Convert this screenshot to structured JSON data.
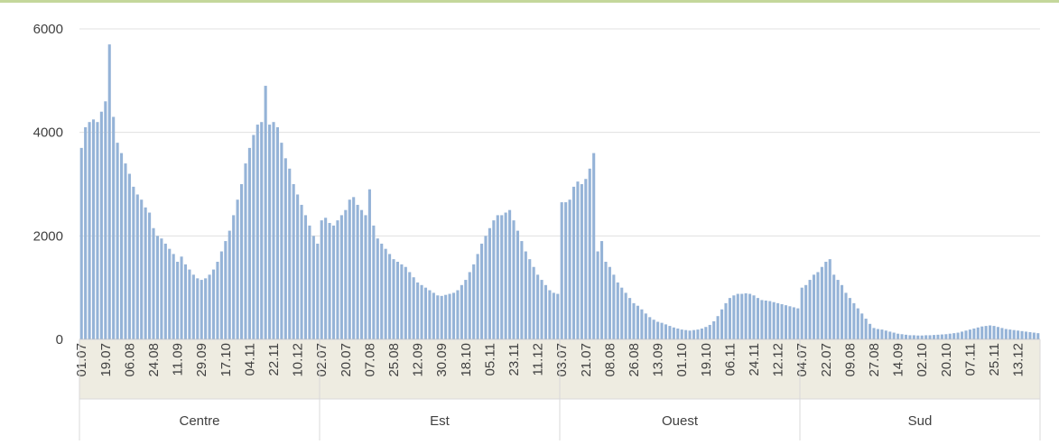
{
  "chart_data": {
    "type": "bar",
    "color": "#95b3d7",
    "grid": true,
    "ylim": [
      0,
      6000
    ],
    "yticks": [
      0,
      2000,
      4000,
      6000
    ],
    "groups": [
      "Centre",
      "Est",
      "Ouest",
      "Sud"
    ],
    "categories": [
      "01.07",
      null,
      null,
      null,
      null,
      null,
      "19.07",
      null,
      null,
      null,
      null,
      null,
      "06.08",
      null,
      null,
      null,
      null,
      null,
      "24.08",
      null,
      null,
      null,
      null,
      null,
      "11.09",
      null,
      null,
      null,
      null,
      null,
      "29.09",
      null,
      null,
      null,
      null,
      null,
      "17.10",
      null,
      null,
      null,
      null,
      null,
      "04.11",
      null,
      null,
      null,
      null,
      null,
      "22.11",
      null,
      null,
      null,
      null,
      null,
      "10.12",
      null,
      null,
      null,
      null,
      null,
      "02.07",
      null,
      null,
      null,
      null,
      null,
      "20.07",
      null,
      null,
      null,
      null,
      null,
      "07.08",
      null,
      null,
      null,
      null,
      null,
      "25.08",
      null,
      null,
      null,
      null,
      null,
      "12.09",
      null,
      null,
      null,
      null,
      null,
      "30.09",
      null,
      null,
      null,
      null,
      null,
      "18.10",
      null,
      null,
      null,
      null,
      null,
      "05.11",
      null,
      null,
      null,
      null,
      null,
      "23.11",
      null,
      null,
      null,
      null,
      null,
      "11.12",
      null,
      null,
      null,
      null,
      null,
      "03.07",
      null,
      null,
      null,
      null,
      null,
      "21.07",
      null,
      null,
      null,
      null,
      null,
      "08.08",
      null,
      null,
      null,
      null,
      null,
      "26.08",
      null,
      null,
      null,
      null,
      null,
      "13.09",
      null,
      null,
      null,
      null,
      null,
      "01.10",
      null,
      null,
      null,
      null,
      null,
      "19.10",
      null,
      null,
      null,
      null,
      null,
      "06.11",
      null,
      null,
      null,
      null,
      null,
      "24.11",
      null,
      null,
      null,
      null,
      null,
      "12.12",
      null,
      null,
      null,
      null,
      null,
      "04.07",
      null,
      null,
      null,
      null,
      null,
      "22.07",
      null,
      null,
      null,
      null,
      null,
      "09.08",
      null,
      null,
      null,
      null,
      null,
      "27.08",
      null,
      null,
      null,
      null,
      null,
      "14.09",
      null,
      null,
      null,
      null,
      null,
      "02.10",
      null,
      null,
      null,
      null,
      null,
      "20.10",
      null,
      null,
      null,
      null,
      null,
      "07.11",
      null,
      null,
      null,
      null,
      null,
      "25.11",
      null,
      null,
      null,
      null,
      null,
      "13.12",
      null,
      null,
      null,
      null,
      null
    ],
    "values": [
      3700,
      4100,
      4200,
      4250,
      4200,
      4400,
      4600,
      5700,
      4300,
      3800,
      3600,
      3400,
      3200,
      2950,
      2800,
      2700,
      2550,
      2450,
      2150,
      2000,
      1950,
      1850,
      1750,
      1650,
      1500,
      1600,
      1450,
      1350,
      1250,
      1180,
      1150,
      1180,
      1250,
      1350,
      1500,
      1700,
      1900,
      2100,
      2400,
      2700,
      3000,
      3400,
      3700,
      3950,
      4150,
      4200,
      4900,
      4150,
      4200,
      4100,
      3800,
      3500,
      3300,
      3000,
      2800,
      2600,
      2400,
      2200,
      2000,
      1850,
      2300,
      2350,
      2250,
      2200,
      2300,
      2400,
      2500,
      2700,
      2750,
      2600,
      2500,
      2400,
      2900,
      2200,
      1950,
      1850,
      1750,
      1650,
      1550,
      1500,
      1450,
      1400,
      1300,
      1200,
      1100,
      1050,
      1000,
      950,
      900,
      850,
      840,
      860,
      880,
      900,
      950,
      1050,
      1150,
      1300,
      1450,
      1650,
      1850,
      2000,
      2150,
      2300,
      2400,
      2400,
      2450,
      2500,
      2300,
      2100,
      1900,
      1700,
      1550,
      1400,
      1250,
      1150,
      1050,
      950,
      900,
      880,
      2650,
      2650,
      2700,
      2950,
      3050,
      3000,
      3100,
      3300,
      3600,
      1700,
      1900,
      1500,
      1400,
      1250,
      1100,
      1000,
      900,
      800,
      700,
      650,
      580,
      500,
      430,
      380,
      340,
      320,
      290,
      260,
      230,
      210,
      190,
      180,
      170,
      180,
      190,
      210,
      240,
      280,
      350,
      450,
      580,
      700,
      800,
      850,
      880,
      880,
      890,
      880,
      850,
      800,
      760,
      750,
      740,
      720,
      700,
      680,
      660,
      640,
      620,
      600,
      1000,
      1050,
      1150,
      1250,
      1300,
      1400,
      1500,
      1550,
      1250,
      1150,
      1050,
      900,
      800,
      700,
      600,
      500,
      400,
      300,
      220,
      200,
      190,
      170,
      150,
      130,
      110,
      100,
      90,
      80,
      80,
      75,
      75,
      80,
      80,
      85,
      90,
      95,
      100,
      110,
      120,
      130,
      150,
      170,
      190,
      210,
      230,
      250,
      260,
      270,
      260,
      240,
      220,
      200,
      190,
      180,
      170,
      160,
      150,
      140,
      130,
      120
    ]
  }
}
